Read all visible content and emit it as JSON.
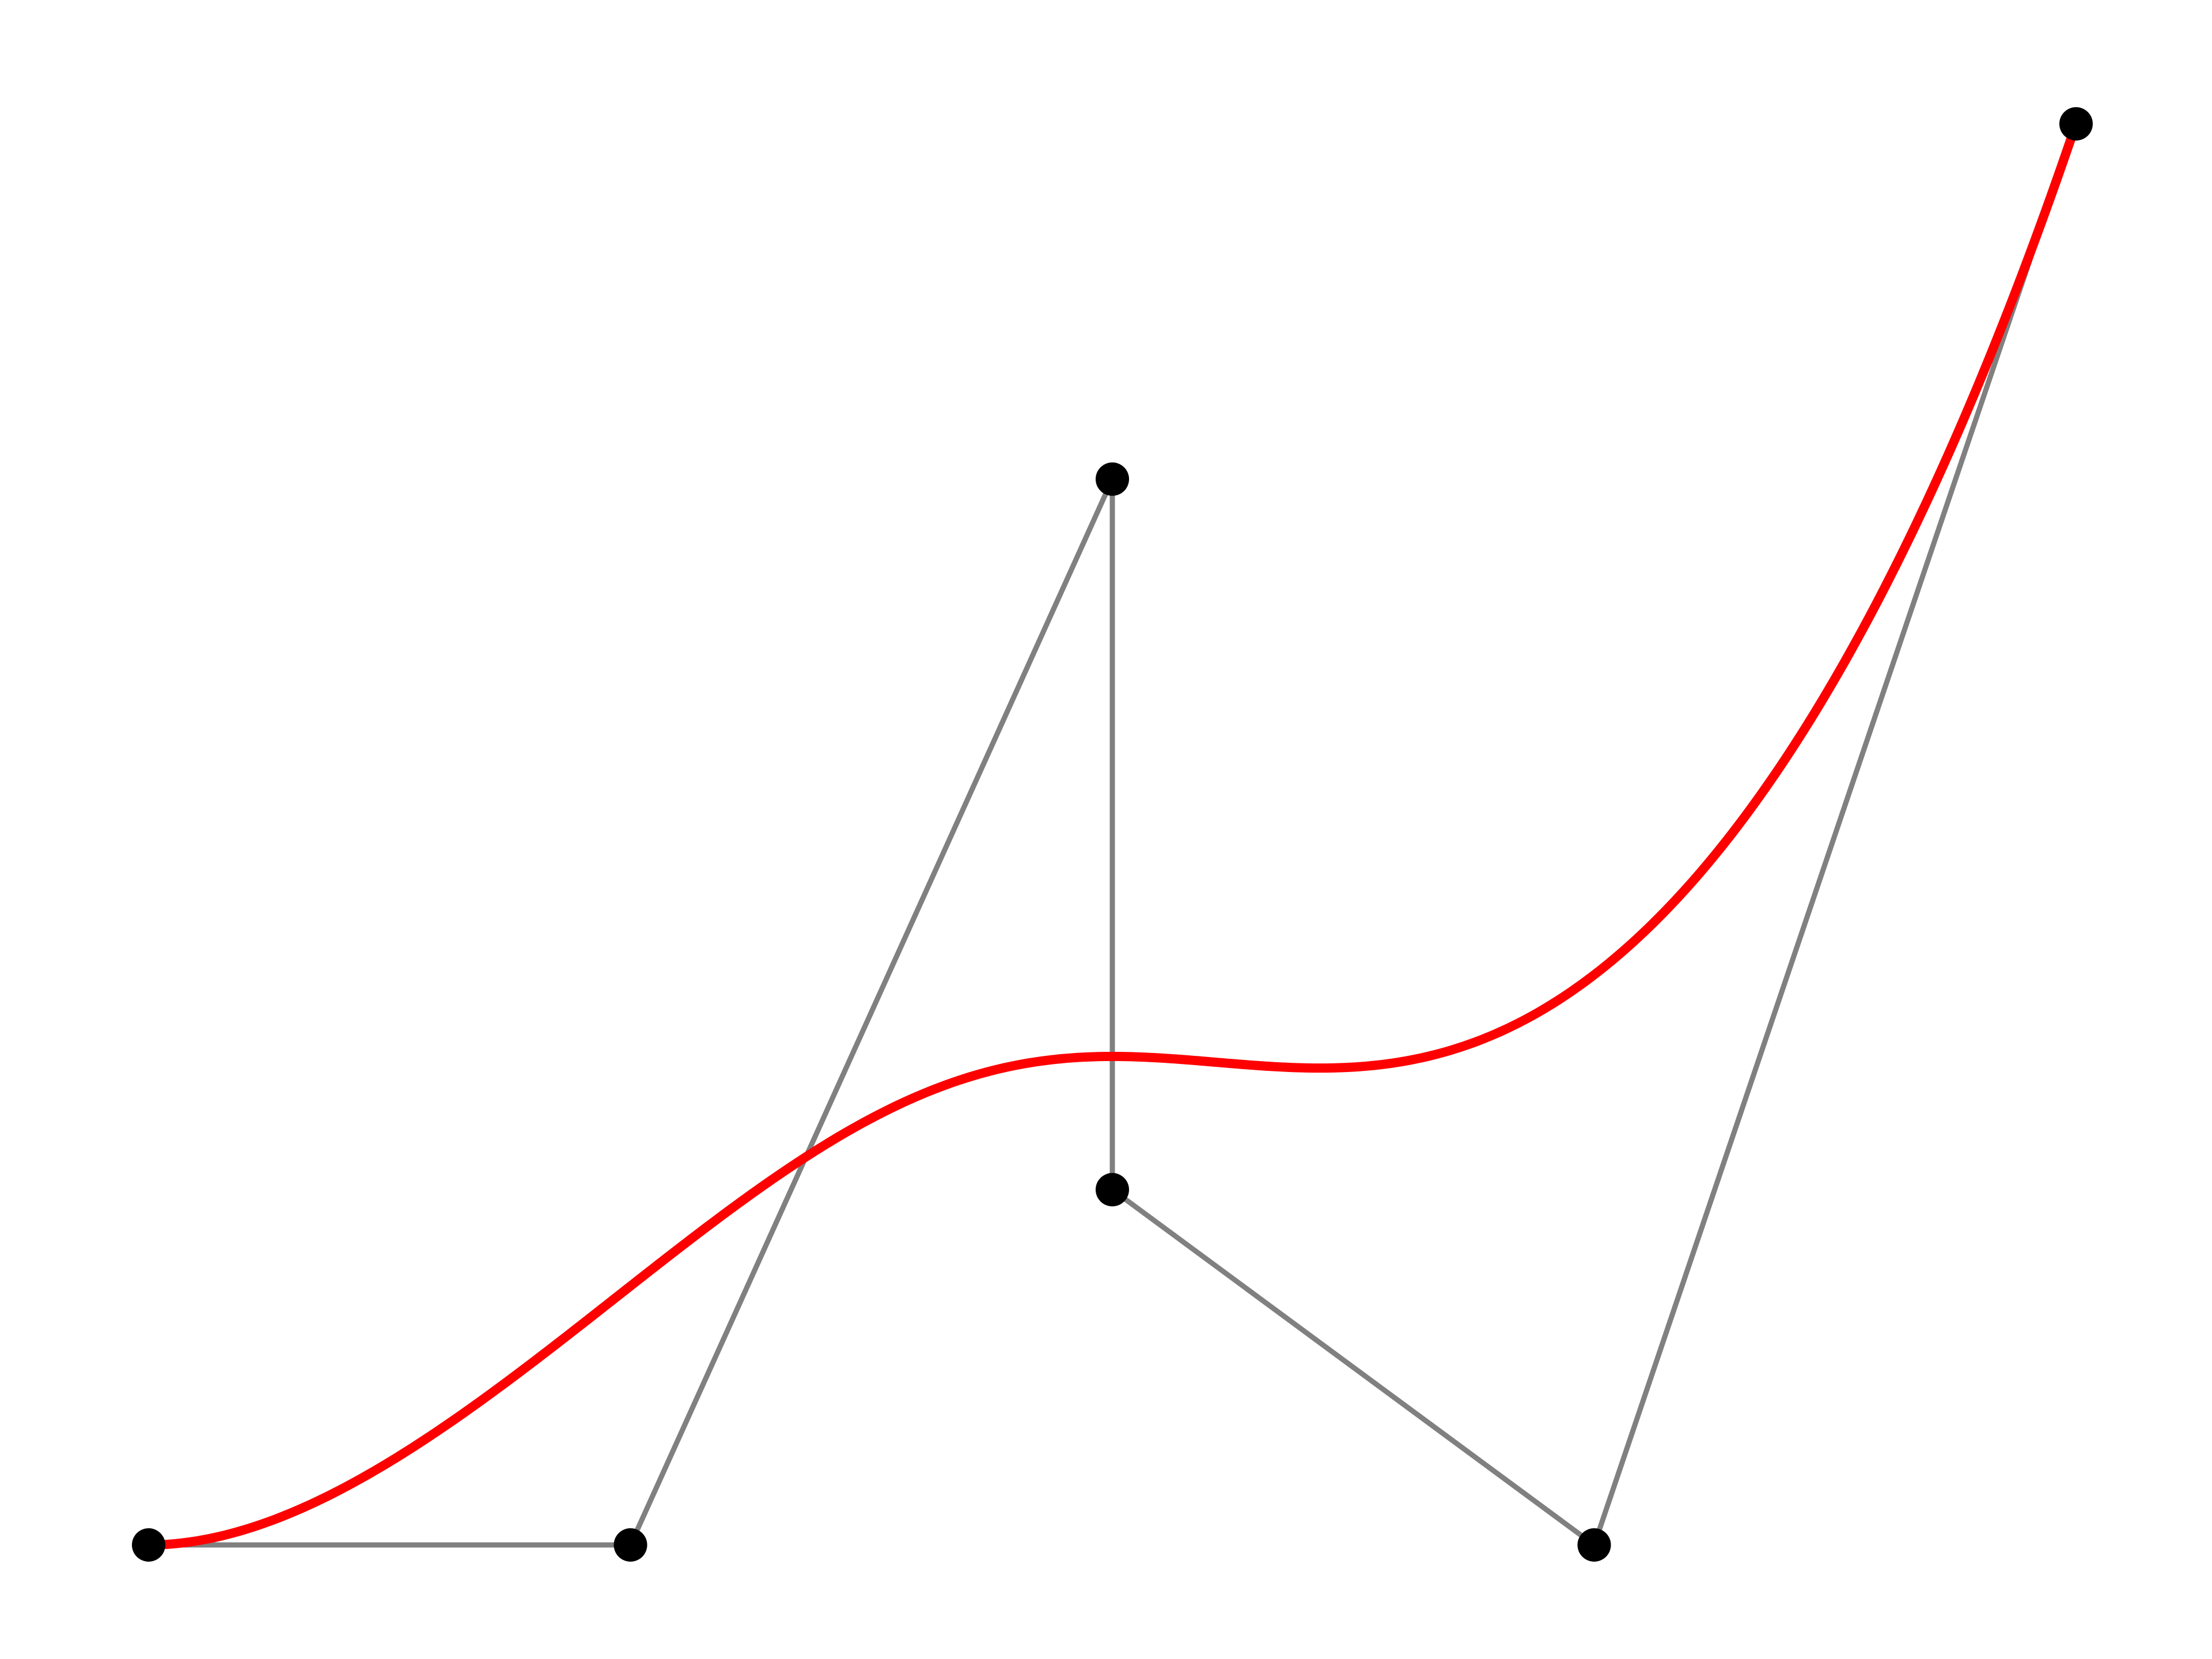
{
  "diagram": {
    "type": "bezier-curve",
    "control_points": [
      {
        "x": 0,
        "y": 0
      },
      {
        "x": 1,
        "y": 0
      },
      {
        "x": 2,
        "y": 3
      },
      {
        "x": 2,
        "y": 1
      },
      {
        "x": 3,
        "y": 0
      },
      {
        "x": 4,
        "y": 4
      }
    ],
    "x_range": [
      0,
      4
    ],
    "y_range": [
      0,
      4
    ],
    "curve_color": "#ff0000",
    "polygon_color": "#808080",
    "point_color": "#000000",
    "axes_visible": false,
    "grid": false
  }
}
